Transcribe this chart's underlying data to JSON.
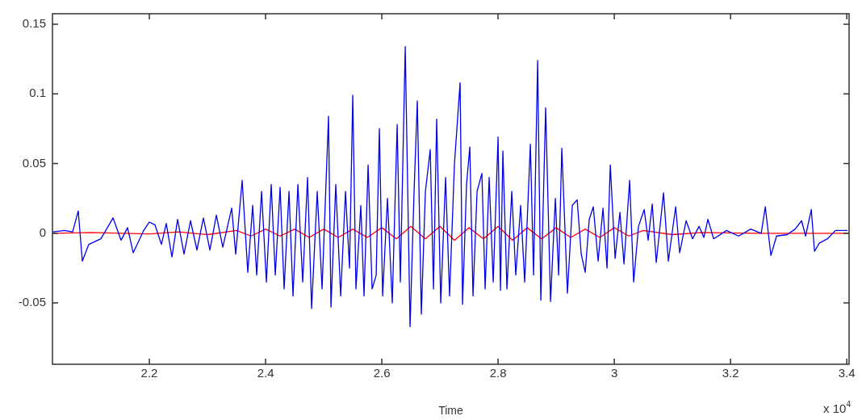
{
  "chart_data": {
    "type": "line",
    "xlabel": "Time",
    "annotations": [
      "x 10$^{4}$"
    ],
    "xlim": [
      2.0333,
      3.404
    ],
    "ylim": [
      -0.094,
      0.1575
    ],
    "xticks": [
      2.2,
      2.4,
      2.6,
      2.8,
      3,
      3.2,
      3.4
    ],
    "yticks": [
      -0.05,
      0,
      0.05,
      0.1,
      0.15
    ],
    "grid": false,
    "legend": false,
    "series": [
      {
        "color": "#0000ee",
        "x": [
          2.0333,
          2.0541,
          2.068,
          2.0777,
          2.0847,
          2.0958,
          2.1166,
          2.1375,
          2.1514,
          2.1625,
          2.1722,
          2.1903,
          2.2,
          2.2097,
          2.2208,
          2.2291,
          2.2389,
          2.2486,
          2.2597,
          2.2708,
          2.2819,
          2.293,
          2.3042,
          2.3153,
          2.3264,
          2.3417,
          2.3486,
          2.3597,
          2.3694,
          2.3778,
          2.3847,
          2.3931,
          2.4014,
          2.4097,
          2.4167,
          2.425,
          2.4319,
          2.4403,
          2.4472,
          2.4556,
          2.4639,
          2.4722,
          2.4792,
          2.4889,
          2.4972,
          2.5083,
          2.5125,
          2.5208,
          2.5292,
          2.5375,
          2.5444,
          2.55,
          2.5555,
          2.5639,
          2.5694,
          2.5764,
          2.5833,
          2.5903,
          2.5958,
          2.6014,
          2.6097,
          2.618,
          2.6264,
          2.6319,
          2.6403,
          2.6486,
          2.6555,
          2.6611,
          2.668,
          2.675,
          2.6833,
          2.6889,
          2.6944,
          2.7014,
          2.7097,
          2.7166,
          2.725,
          2.7347,
          2.7389,
          2.7458,
          2.7514,
          2.7569,
          2.7639,
          2.7722,
          2.7778,
          2.7847,
          2.7917,
          2.8,
          2.8042,
          2.8083,
          2.8153,
          2.8236,
          2.8305,
          2.8389,
          2.8458,
          2.8556,
          2.8611,
          2.8681,
          2.8736,
          2.8819,
          2.8903,
          2.8986,
          2.9042,
          2.9097,
          2.9194,
          2.9278,
          2.9361,
          2.9431,
          2.95,
          2.9569,
          2.9639,
          2.9722,
          2.9806,
          2.9875,
          2.9931,
          3.0014,
          3.0097,
          3.0167,
          3.0264,
          3.0333,
          3.0417,
          3.0514,
          3.0583,
          3.0653,
          3.0722,
          3.0847,
          3.093,
          3.1056,
          3.1125,
          3.1236,
          3.1347,
          3.1459,
          3.1542,
          3.1611,
          3.1709,
          3.1931,
          3.2139,
          3.2348,
          3.2528,
          3.2598,
          3.2695,
          3.2792,
          3.2973,
          3.3112,
          3.3223,
          3.3292,
          3.339,
          3.3445,
          3.3528,
          3.3667,
          3.3806,
          3.4014
        ],
        "values": [
          0.001,
          0.002,
          0.001,
          0.016,
          -0.02,
          -0.008,
          -0.004,
          0.011,
          -0.005,
          0.004,
          -0.014,
          0.002,
          0.008,
          0.006,
          -0.008,
          0.007,
          -0.017,
          0.01,
          -0.015,
          0.009,
          -0.012,
          0.011,
          -0.012,
          0.013,
          -0.01,
          0.018,
          -0.015,
          0.038,
          -0.028,
          0.02,
          -0.03,
          0.03,
          -0.035,
          0.035,
          -0.03,
          0.033,
          -0.04,
          0.03,
          -0.045,
          0.035,
          -0.035,
          0.04,
          -0.054,
          0.03,
          -0.04,
          0.084,
          -0.053,
          0.035,
          -0.045,
          0.03,
          -0.025,
          0.099,
          -0.04,
          0.02,
          -0.045,
          0.049,
          -0.04,
          -0.03,
          0.075,
          -0.045,
          0.025,
          -0.05,
          0.078,
          -0.035,
          0.134,
          -0.067,
          0.03,
          0.095,
          -0.058,
          0.03,
          0.06,
          -0.04,
          0.082,
          -0.05,
          0.04,
          -0.045,
          0.05,
          0.108,
          -0.051,
          0.035,
          0.062,
          -0.045,
          0.03,
          0.043,
          -0.04,
          0.04,
          -0.035,
          0.069,
          -0.041,
          0.059,
          -0.04,
          0.03,
          -0.03,
          0.02,
          -0.035,
          0.064,
          -0.03,
          0.124,
          -0.048,
          0.09,
          -0.049,
          0.025,
          -0.03,
          0.061,
          -0.043,
          0.02,
          0.024,
          -0.015,
          -0.028,
          0.01,
          0.019,
          -0.02,
          0.018,
          -0.025,
          0.049,
          -0.018,
          0.015,
          -0.022,
          0.038,
          -0.035,
          0.005,
          0.017,
          -0.005,
          0.021,
          -0.021,
          0.029,
          -0.02,
          0.019,
          -0.014,
          0.009,
          -0.004,
          0.005,
          -0.003,
          0.01,
          -0.004,
          0.002,
          -0.002,
          0.003,
          0,
          0.019,
          -0.016,
          -0.002,
          -0.001,
          0.003,
          0.009,
          -0.002,
          0.017,
          -0.013,
          -0.007,
          -0.004,
          0.002,
          0.002
        ]
      },
      {
        "color": "#ff0000",
        "x": [
          2.0333,
          2.1,
          2.2,
          2.25,
          2.3,
          2.35,
          2.375,
          2.4,
          2.425,
          2.45,
          2.475,
          2.5,
          2.525,
          2.55,
          2.575,
          2.6,
          2.625,
          2.65,
          2.675,
          2.7,
          2.725,
          2.75,
          2.775,
          2.8,
          2.825,
          2.85,
          2.875,
          2.9,
          2.925,
          2.95,
          2.975,
          3,
          3.025,
          3.05,
          3.1,
          3.15,
          3.25,
          3.404
        ],
        "values": [
          0,
          0.0005,
          -0.0005,
          0.001,
          -0.001,
          0.002,
          -0.002,
          0.003,
          -0.002,
          0.003,
          -0.003,
          0.003,
          -0.003,
          0.003,
          -0.003,
          0.004,
          -0.004,
          0.005,
          -0.004,
          0.005,
          -0.005,
          0.004,
          -0.004,
          0.005,
          -0.005,
          0.004,
          -0.004,
          0.004,
          -0.003,
          0.003,
          -0.003,
          0.004,
          -0.002,
          0.002,
          -0.001,
          0.0005,
          0,
          0
        ]
      }
    ]
  }
}
